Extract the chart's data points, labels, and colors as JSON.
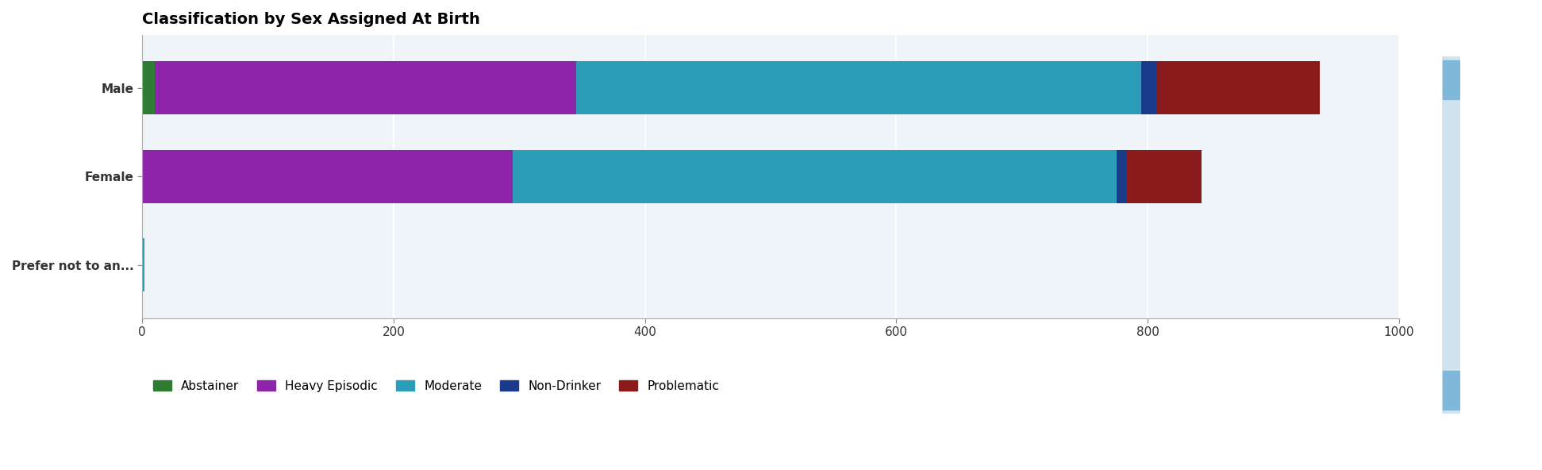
{
  "title": "Classification by Sex Assigned At Birth",
  "categories": [
    "Prefer not to an...",
    "Female",
    "Male"
  ],
  "segments": [
    "Abstainer",
    "Heavy Episodic",
    "Moderate",
    "Non-Drinker",
    "Problematic"
  ],
  "colors": {
    "Abstainer": "#2e7d32",
    "Heavy Episodic": "#8e24aa",
    "Moderate": "#2b9db8",
    "Non-Drinker": "#1a3a8c",
    "Problematic": "#8b1a1a"
  },
  "values": {
    "Male": {
      "Abstainer": 10,
      "Heavy Episodic": 335,
      "Moderate": 450,
      "Non-Drinker": 12,
      "Problematic": 130
    },
    "Female": {
      "Abstainer": 0,
      "Heavy Episodic": 295,
      "Moderate": 480,
      "Non-Drinker": 8,
      "Problematic": 60
    },
    "Prefer not to an...": {
      "Abstainer": 0,
      "Heavy Episodic": 0,
      "Moderate": 2,
      "Non-Drinker": 0,
      "Problematic": 0
    }
  },
  "xlim": [
    0,
    1000
  ],
  "xticks": [
    0,
    200,
    400,
    600,
    800,
    1000
  ],
  "background_color": "#ffffff",
  "plot_background": "#eef4f8",
  "title_fontsize": 14,
  "axis_fontsize": 11,
  "legend_fontsize": 11,
  "bar_height": 0.6
}
